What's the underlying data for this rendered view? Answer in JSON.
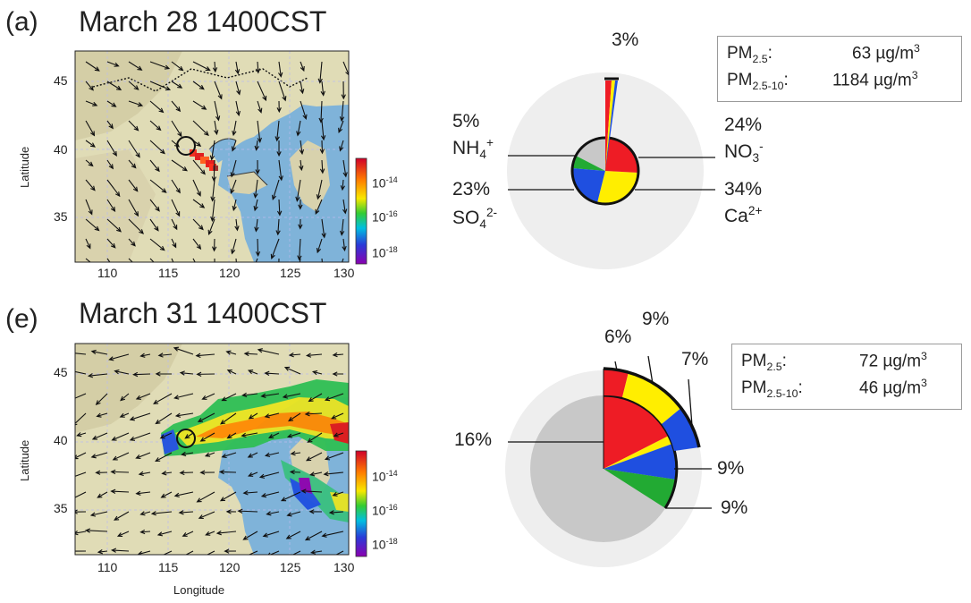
{
  "panels": [
    {
      "letter": "(a)",
      "title": "March 28 1400CST",
      "y_axis_title": "Latitude",
      "x_axis_title": "",
      "lat_ticks": [
        "45",
        "40",
        "35"
      ],
      "lon_ticks": [
        "110",
        "115",
        "120",
        "125",
        "130"
      ],
      "colorbar": {
        "ticks": [
          {
            "base": "10",
            "exp": "-14"
          },
          {
            "base": "10",
            "exp": "-16"
          },
          {
            "base": "10",
            "exp": "-18"
          }
        ]
      },
      "pm": {
        "pm25_label": "PM",
        "pm25_sub": "2.5",
        "pm25_value": "63 µg/m",
        "pm25_exp": "3",
        "pm10_label": "PM",
        "pm10_sub": "2.5-10",
        "pm10_value": "1184 µg/m",
        "pm10_exp": "3"
      },
      "pie": {
        "labels": {
          "top": "3%",
          "nh4_pct": "5%",
          "nh4_ion": "NH",
          "nh4_sub": "4",
          "nh4_sup": "+",
          "no3_pct": "24%",
          "no3_ion": "NO",
          "no3_sub": "3",
          "no3_sup": "-",
          "so4_pct": "23%",
          "so4_ion": "SO",
          "so4_sub": "4",
          "so4_sup": "2-",
          "ca_pct": "34%",
          "ca_ion": "Ca",
          "ca_sup": "2+"
        }
      }
    },
    {
      "letter": "(e)",
      "title": "March 31 1400CST",
      "y_axis_title": "Latitude",
      "x_axis_title": "Longitude",
      "lat_ticks": [
        "45",
        "40",
        "35"
      ],
      "lon_ticks": [
        "110",
        "115",
        "120",
        "125",
        "130"
      ],
      "colorbar": {
        "ticks": [
          {
            "base": "10",
            "exp": "-14"
          },
          {
            "base": "10",
            "exp": "-16"
          },
          {
            "base": "10",
            "exp": "-18"
          }
        ]
      },
      "pm": {
        "pm25_label": "PM",
        "pm25_sub": "2.5",
        "pm25_value": "72 µg/m",
        "pm25_exp": "3",
        "pm10_label": "PM",
        "pm10_sub": "2.5-10",
        "pm10_value": "46 µg/m",
        "pm10_exp": "3"
      },
      "pie": {
        "labels": {
          "p6": "6%",
          "p9a": "9%",
          "p7": "7%",
          "p16": "16%",
          "p9b": "9%",
          "p9c": "9%"
        }
      }
    }
  ],
  "colors": {
    "nitrate": "#ee1c25",
    "calcium": "#ffee00",
    "sulfate": "#1f4fe0",
    "ammonium": "#22aa33",
    "other": "#c8c8c8",
    "background_disc": "#eeeeee",
    "ocean": "#7fb3d9",
    "land": "#e2ddb8"
  }
}
